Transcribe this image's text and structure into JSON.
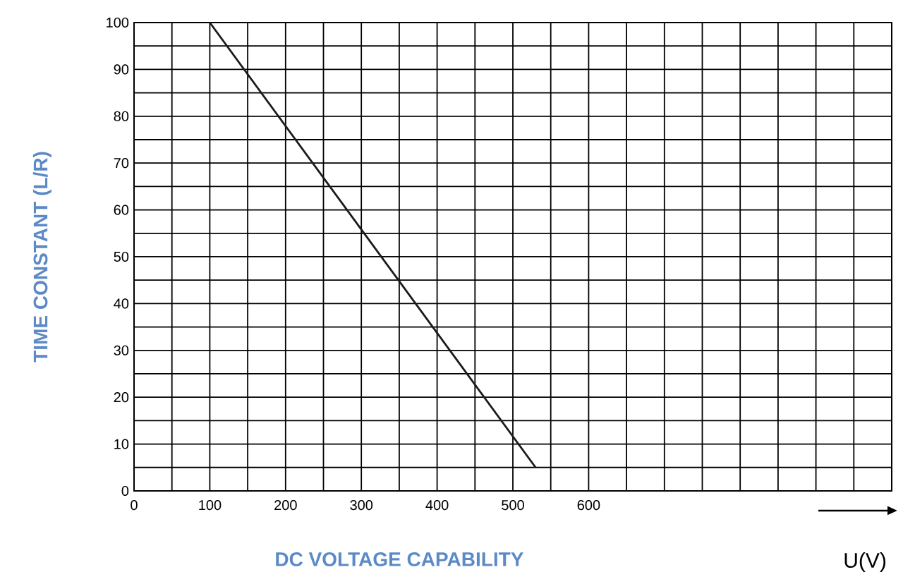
{
  "chart_data": {
    "type": "line",
    "xlabel": "DC VOLTAGE CAPABILITY",
    "ylabel": "TIME CONSTANT (L/R)",
    "annotations": [
      "U(V)"
    ],
    "x": [
      100,
      530
    ],
    "series": [
      {
        "color": "#1a1a1a",
        "values": [
          100,
          5
        ]
      }
    ],
    "xlim": [
      0,
      1000
    ],
    "ylim": [
      0,
      100
    ],
    "xticks": [
      0,
      {
        "value": 50,
        "label": null
      },
      100,
      {
        "value": 150,
        "label": null
      },
      200,
      {
        "value": 250,
        "label": null
      },
      300,
      {
        "value": 350,
        "label": null
      },
      400,
      {
        "value": 450,
        "label": null
      },
      500,
      {
        "value": 550,
        "label": null
      },
      600,
      {
        "value": 650,
        "label": null
      },
      {
        "value": 700,
        "label": null
      },
      {
        "value": 750,
        "label": null
      },
      {
        "value": 800,
        "label": null
      },
      {
        "value": 850,
        "label": null
      },
      {
        "value": 900,
        "label": null
      },
      {
        "value": 950,
        "label": null
      },
      {
        "value": 1000,
        "label": null
      }
    ],
    "yticks": [
      0,
      {
        "value": 5,
        "label": null
      },
      10,
      {
        "value": 15,
        "label": null
      },
      20,
      {
        "value": 25,
        "label": null
      },
      30,
      {
        "value": 35,
        "label": null
      },
      40,
      {
        "value": 45,
        "label": null
      },
      50,
      {
        "value": 55,
        "label": null
      },
      60,
      {
        "value": 65,
        "label": null
      },
      70,
      {
        "value": 75,
        "label": null
      },
      80,
      {
        "value": 85,
        "label": null
      },
      90,
      {
        "value": 95,
        "label": null
      },
      100
    ],
    "grid": true,
    "marker": "none",
    "line_style": "solid"
  }
}
